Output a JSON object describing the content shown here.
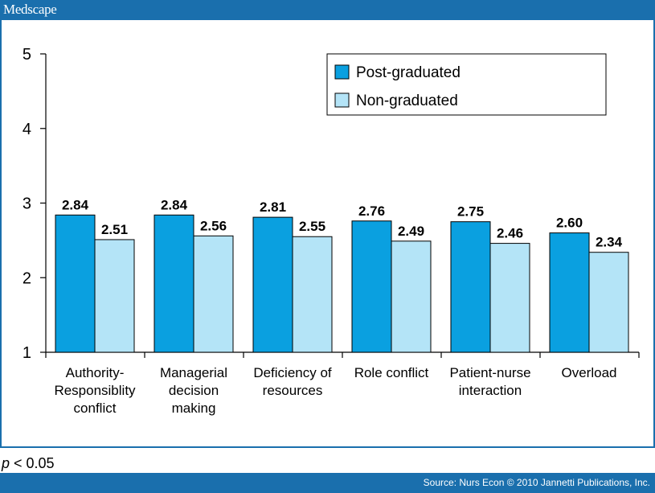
{
  "header": {
    "brand": "Medscape"
  },
  "footer": {
    "source": "Source: Nurs Econ © 2010 Jannetti Publications, Inc."
  },
  "note": {
    "p_symbol": "p",
    "rest": " < 0.05"
  },
  "colors": {
    "bar_border": "#1a6fad",
    "series1": "#0aa0e0",
    "series2": "#b4e4f7"
  },
  "chart_data": {
    "type": "bar",
    "title": "",
    "xlabel": "",
    "ylabel": "",
    "ylim": [
      1,
      5
    ],
    "yticks": [
      "1",
      "2",
      "3",
      "4",
      "5"
    ],
    "categories": [
      [
        "Authority-",
        "Responsiblity",
        "conflict"
      ],
      [
        "Managerial",
        "decision",
        "making"
      ],
      [
        "Deficiency of",
        "resources"
      ],
      [
        "Role conflict"
      ],
      [
        "Patient-nurse",
        "interaction"
      ],
      [
        "Overload"
      ]
    ],
    "series": [
      {
        "name": "Post-graduated",
        "values": [
          2.84,
          2.84,
          2.81,
          2.76,
          2.75,
          2.6
        ],
        "labels": [
          "2.84",
          "2.84",
          "2.81",
          "2.76",
          "2.75",
          "2.60"
        ]
      },
      {
        "name": "Non-graduated",
        "values": [
          2.51,
          2.56,
          2.55,
          2.49,
          2.46,
          2.34
        ],
        "labels": [
          "2.51",
          "2.56",
          "2.55",
          "2.49",
          "2.46",
          "2.34"
        ]
      }
    ],
    "legend": "top-right",
    "grid": false
  }
}
